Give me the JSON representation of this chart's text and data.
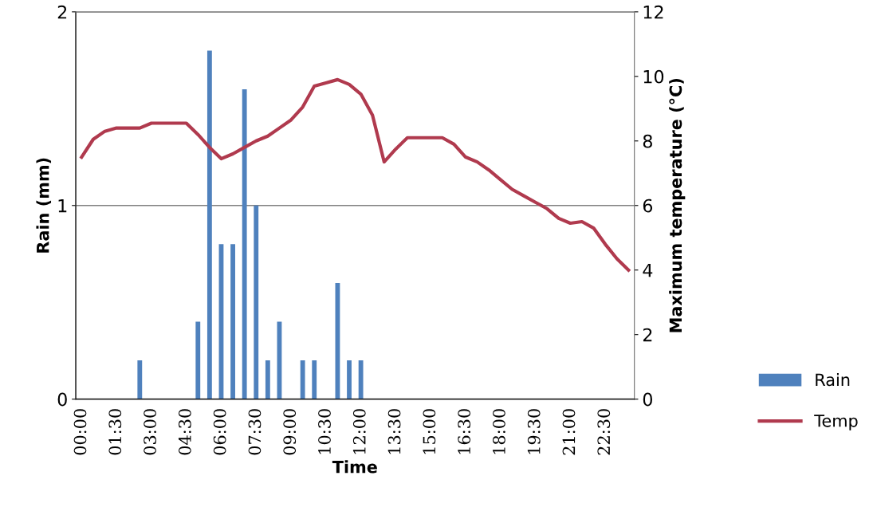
{
  "chart_data": {
    "type": "bar",
    "xlabel": "Time",
    "ylabel": "Rain (mm)",
    "y2label": "Maximum temperature (°C)",
    "categories": [
      "00:00",
      null,
      null,
      "01:30",
      null,
      null,
      "03:00",
      null,
      null,
      "04:30",
      null,
      null,
      "06:00",
      null,
      null,
      "07:30",
      null,
      null,
      "09:00",
      null,
      null,
      "10:30",
      null,
      null,
      "12:00",
      null,
      null,
      "13:30",
      null,
      null,
      "15:00",
      null,
      null,
      "16:30",
      null,
      null,
      "18:00",
      null,
      null,
      "19:30",
      null,
      null,
      "21:00",
      null,
      null,
      "22:30",
      null,
      null
    ],
    "series": [
      {
        "name": "Rain",
        "color": "#4f81bd",
        "values": [
          0,
          0,
          0,
          0,
          0,
          0.2,
          0,
          0,
          0,
          0,
          0.4,
          1.8,
          0.8,
          0.8,
          1.6,
          1.0,
          0.2,
          0.4,
          0,
          0.2,
          0.2,
          0,
          0.6,
          0.2,
          0.2,
          0,
          0,
          0,
          0,
          0,
          0,
          0,
          0,
          0,
          0,
          0,
          0,
          0,
          0,
          0,
          0,
          0,
          0,
          0,
          0,
          0,
          0,
          0
        ]
      },
      {
        "name": "Temp",
        "type": "line",
        "axis": "y2",
        "color": "#b03a4e",
        "values": [
          7.5,
          8.05,
          8.3,
          8.4,
          8.4,
          8.4,
          8.55,
          8.55,
          8.55,
          8.55,
          8.2,
          7.8,
          7.45,
          7.6,
          7.8,
          8.0,
          8.15,
          8.4,
          8.65,
          9.05,
          9.7,
          9.8,
          9.9,
          9.75,
          9.45,
          8.8,
          7.35,
          7.75,
          8.1,
          8.1,
          8.1,
          8.1,
          7.9,
          7.5,
          7.35,
          7.1,
          6.8,
          6.5,
          6.3,
          6.1,
          5.9,
          5.6,
          5.45,
          5.5,
          5.3,
          4.8,
          4.35,
          4.0
        ]
      }
    ],
    "ylim": [
      0,
      2
    ],
    "yticks": [
      0,
      1,
      2
    ],
    "y2lim": [
      0,
      12
    ],
    "y2ticks": [
      0,
      2,
      4,
      6,
      8,
      10,
      12
    ],
    "grid": "y",
    "legend": "right",
    "marker": "none",
    "line_style": "solid"
  }
}
